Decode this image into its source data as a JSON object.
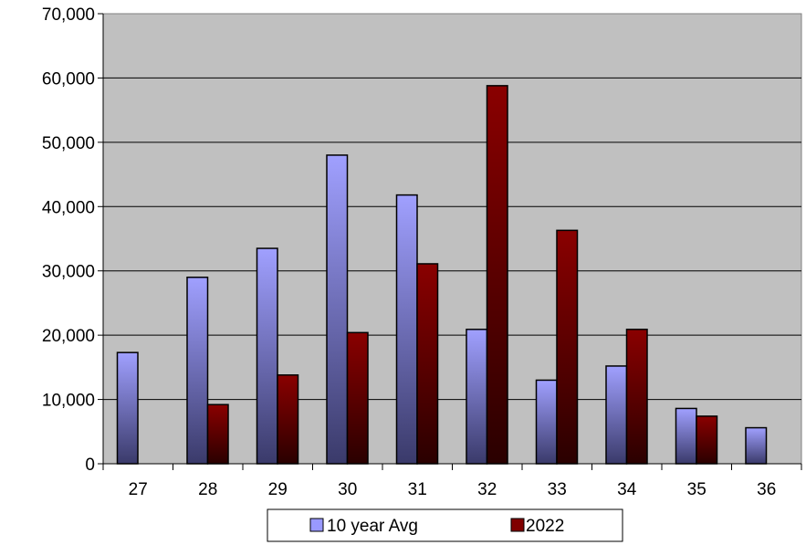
{
  "chart_data": {
    "type": "bar",
    "categories": [
      "27",
      "28",
      "29",
      "30",
      "31",
      "32",
      "33",
      "34",
      "35",
      "36"
    ],
    "series": [
      {
        "name": "10 year Avg",
        "values": [
          17300,
          29000,
          33500,
          48000,
          41800,
          20900,
          13000,
          15200,
          8600,
          5600
        ],
        "color": "#9999ff"
      },
      {
        "name": "2022",
        "values": [
          0,
          9200,
          13800,
          20400,
          31100,
          58800,
          36300,
          20900,
          7400,
          null
        ],
        "color": "#800000"
      }
    ],
    "ylim": [
      0,
      70000
    ],
    "yticks": [
      0,
      10000,
      20000,
      30000,
      40000,
      50000,
      60000,
      70000
    ],
    "ytick_labels": [
      "0",
      "10,000",
      "20,000",
      "30,000",
      "40,000",
      "50,000",
      "60,000",
      "70,000"
    ],
    "grid": true,
    "plot_background": "#c0c0c0",
    "legend_position": "bottom"
  }
}
